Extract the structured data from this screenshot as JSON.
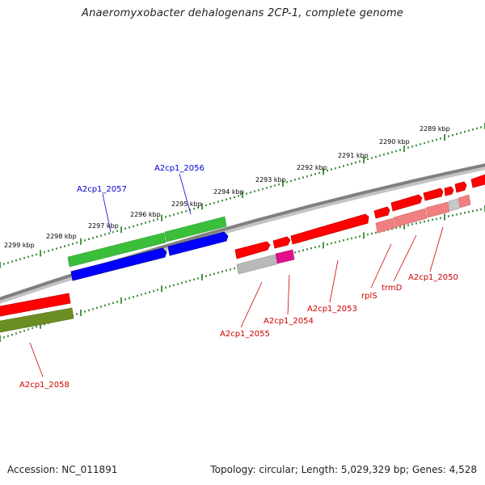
{
  "title": "Anaeromyxobacter dehalogenans 2CP-1, complete genome",
  "footer": {
    "accession": "Accession: NC_011891",
    "summary": "Topology: circular; Length: 5,029,329 bp; Genes: 4,528"
  },
  "colors": {
    "forward_cds": "#ff0000",
    "forward_gene": "#f08080",
    "reverse_cds": "#0000ff",
    "reverse_gene": "#3bbf3b",
    "highlight_gene": "#e0108a",
    "pseudo_gene": "#b8b8b8",
    "dark_gene": "#6b8e23",
    "backbone": "#808080",
    "ticks": "#1a7a1a",
    "label_red": "#cc0000",
    "label_blue": "#0000cc"
  },
  "tick_labels": [
    "2289 kbp",
    "2290 kbp",
    "2291 kbp",
    "2292 kbp",
    "2293 kbp",
    "2294 kbp",
    "2295 kbp",
    "2296 kbp",
    "2297 kbp",
    "2298 kbp",
    "2299 kbp"
  ],
  "gene_labels": {
    "a2cp1_2050": "A2cp1_2050",
    "trmd": "trmD",
    "rpls": "rplS",
    "a2cp1_2053": "A2cp1_2053",
    "a2cp1_2054": "A2cp1_2054",
    "a2cp1_2055": "A2cp1_2055",
    "a2cp1_2056": "A2cp1_2056",
    "a2cp1_2057": "A2cp1_2057",
    "a2cp1_2058": "A2cp1_2058"
  }
}
